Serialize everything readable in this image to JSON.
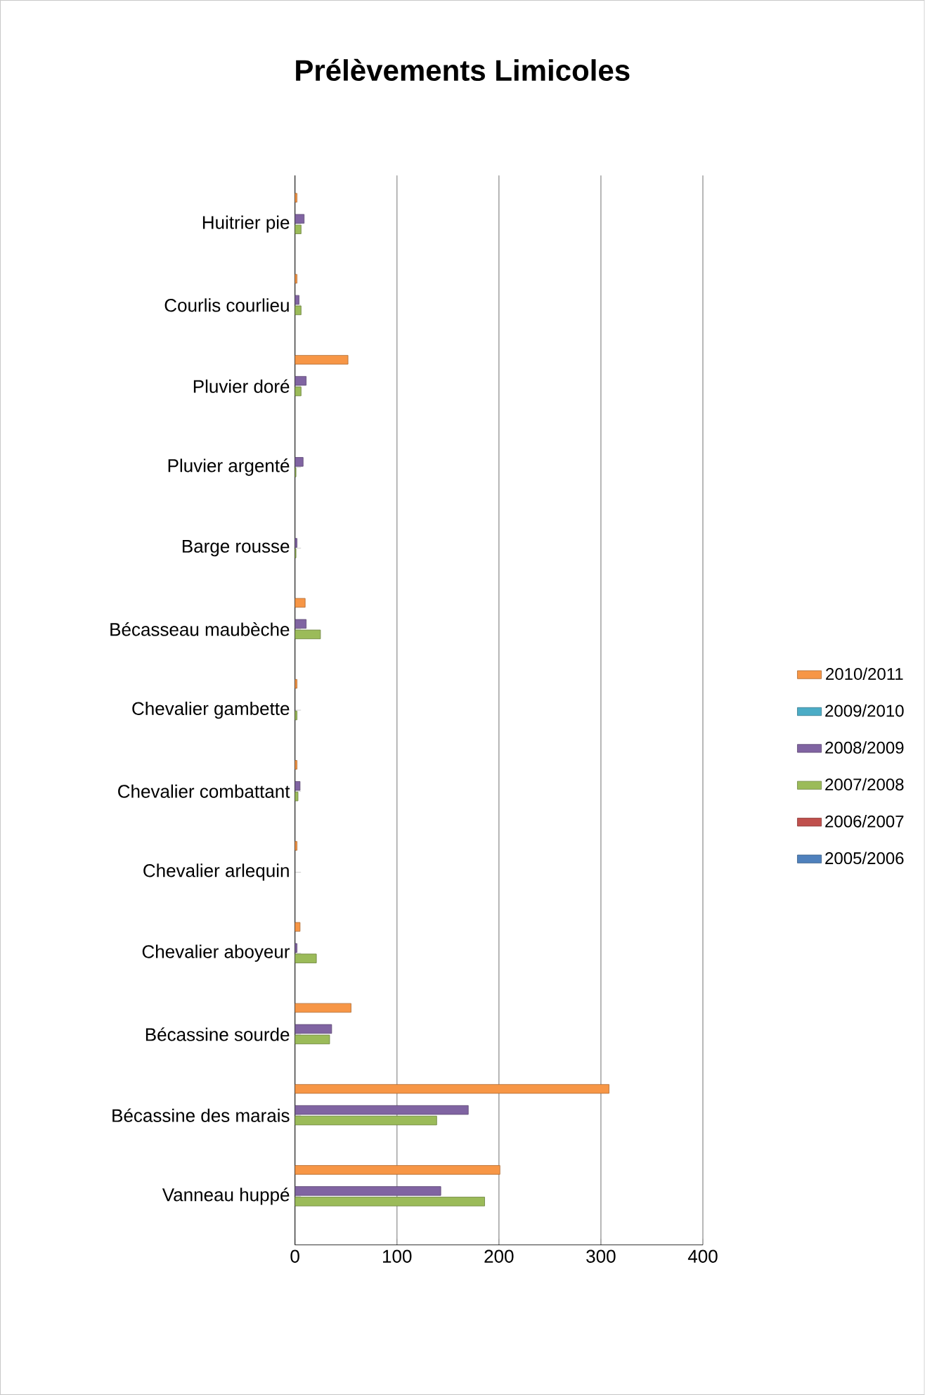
{
  "chart_data": {
    "type": "bar",
    "orientation": "horizontal",
    "title": "Prélèvements Limicoles",
    "categories": [
      "Huitrier pie",
      "Courlis courlieu",
      "Pluvier doré",
      "Pluvier argenté",
      "Barge rousse",
      "Bécasseau maubèche",
      "Chevalier gambette",
      "Chevalier combattant",
      "Chevalier arlequin",
      "Chevalier aboyeur",
      "Bécassine sourde",
      "Bécassine des marais",
      "Vanneau huppé"
    ],
    "series": [
      {
        "name": "2005/2006",
        "color": "#4f81bd",
        "values": [
          null,
          null,
          null,
          null,
          null,
          null,
          null,
          null,
          null,
          null,
          null,
          null,
          null
        ]
      },
      {
        "name": "2006/2007",
        "color": "#c0504d",
        "values": [
          null,
          null,
          null,
          null,
          null,
          null,
          null,
          null,
          null,
          null,
          null,
          null,
          null
        ]
      },
      {
        "name": "2007/2008",
        "color": "#9bbb59",
        "values": [
          6,
          6,
          6,
          1,
          1,
          25,
          2,
          3,
          null,
          21,
          34,
          139,
          186
        ]
      },
      {
        "name": "2008/2009",
        "color": "#8064a2",
        "values": [
          9,
          4,
          11,
          8,
          2,
          11,
          null,
          5,
          null,
          2,
          36,
          170,
          143
        ]
      },
      {
        "name": "2009/2010",
        "color": "#4bacc6",
        "values": [
          null,
          null,
          null,
          null,
          null,
          null,
          null,
          null,
          null,
          null,
          null,
          null,
          null
        ]
      },
      {
        "name": "2010/2011",
        "color": "#f79646",
        "values": [
          2,
          2,
          52,
          null,
          null,
          10,
          2,
          2,
          2,
          5,
          55,
          308,
          201
        ]
      }
    ],
    "xlim": [
      0,
      400
    ],
    "xticks": [
      0,
      100,
      200,
      300,
      400
    ],
    "grid": "x",
    "legend": "right"
  }
}
